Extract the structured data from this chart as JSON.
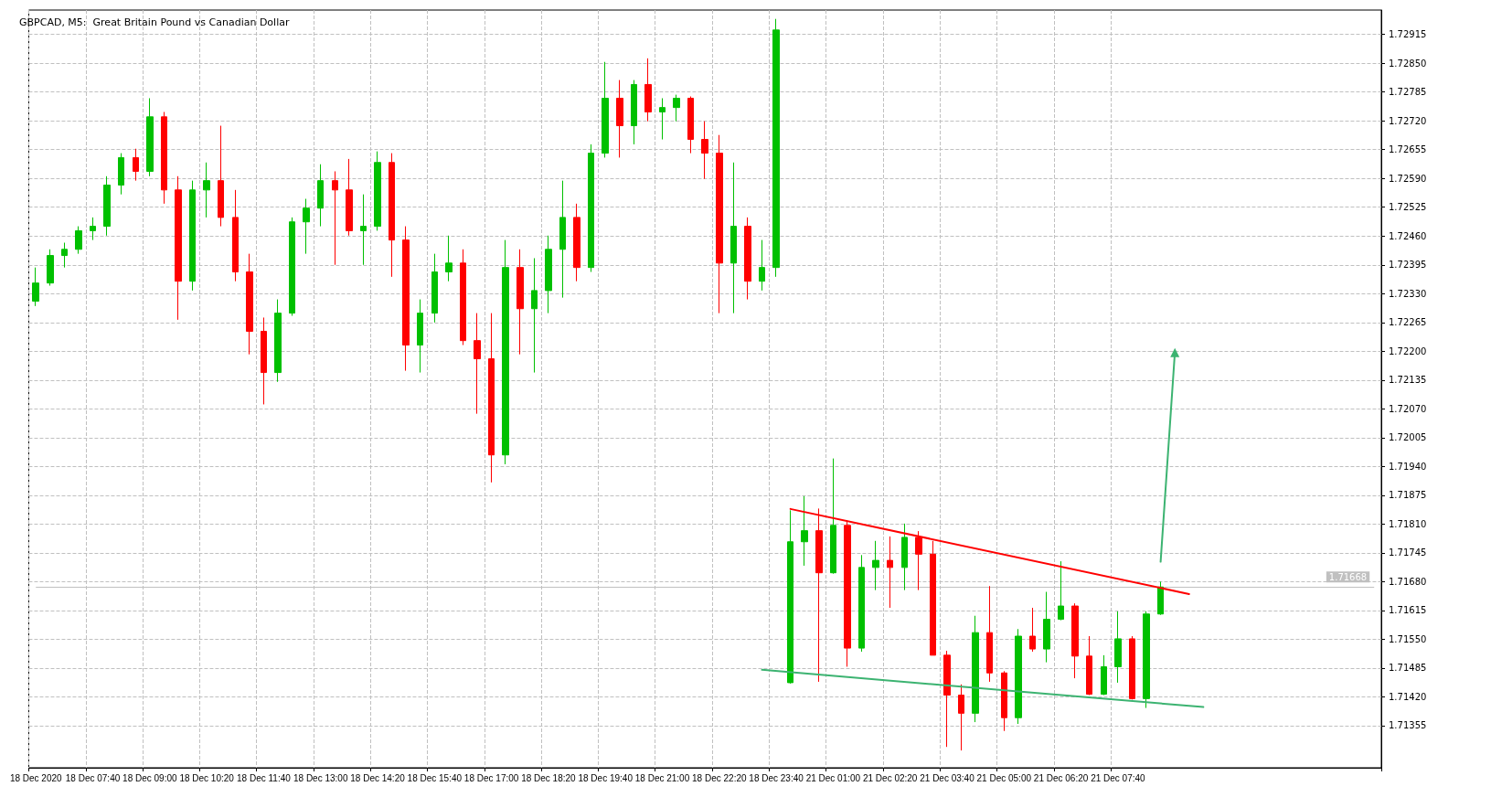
{
  "chart_data": {
    "type": "candlestick",
    "title": "GBPCAD, M5:  Great Britain Pound vs Canadian Dollar",
    "categories": [
      "18 Dec 2020",
      null,
      null,
      null,
      "18 Dec 07:40",
      null,
      null,
      null,
      "18 Dec 09:00",
      null,
      null,
      null,
      "18 Dec 10:20",
      null,
      null,
      null,
      "18 Dec 11:40",
      null,
      null,
      null,
      "18 Dec 13:00",
      null,
      null,
      null,
      "18 Dec 14:20",
      null,
      null,
      null,
      "18 Dec 15:40",
      null,
      null,
      null,
      "18 Dec 17:00",
      null,
      null,
      null,
      "18 Dec 18:20",
      null,
      null,
      null,
      "18 Dec 19:40",
      null,
      null,
      null,
      "18 Dec 21:00",
      null,
      null,
      null,
      "18 Dec 22:20",
      null,
      null,
      null,
      "18 Dec 23:40",
      null,
      null,
      null,
      "21 Dec 01:00",
      null,
      null,
      null,
      "21 Dec 02:20",
      null,
      null,
      null,
      "21 Dec 03:40",
      null,
      null,
      null,
      "21 Dec 05:00",
      null,
      null,
      null,
      "21 Dec 06:20",
      null,
      null,
      null,
      "21 Dec 07:40",
      null,
      null,
      null,
      null,
      null,
      null,
      null,
      null,
      null,
      null,
      null,
      null,
      null,
      null,
      null,
      null,
      null,
      null
    ],
    "ohlc": [
      [
        1.72313,
        1.72389,
        1.72302,
        1.72354
      ],
      [
        1.72354,
        1.7243,
        1.72348,
        1.72416
      ],
      [
        1.72416,
        1.72445,
        1.72389,
        1.7243
      ],
      [
        1.7243,
        1.72482,
        1.7242,
        1.72472
      ],
      [
        1.72472,
        1.72502,
        1.72451,
        1.72482
      ],
      [
        1.72482,
        1.72595,
        1.72461,
        1.72575
      ],
      [
        1.72575,
        1.72647,
        1.72554,
        1.72637
      ],
      [
        1.72637,
        1.72657,
        1.72585,
        1.72606
      ],
      [
        1.72606,
        1.72771,
        1.72595,
        1.72729
      ],
      [
        1.72729,
        1.7274,
        1.72533,
        1.72564
      ],
      [
        1.72564,
        1.72595,
        1.72271,
        1.72358
      ],
      [
        1.72358,
        1.72585,
        1.72337,
        1.72564
      ],
      [
        1.72564,
        1.72626,
        1.72502,
        1.72585
      ],
      [
        1.72585,
        1.72709,
        1.72482,
        1.72502
      ],
      [
        1.72502,
        1.72564,
        1.72358,
        1.72379
      ],
      [
        1.72379,
        1.7242,
        1.72193,
        1.72245
      ],
      [
        1.72245,
        1.72276,
        1.7208,
        1.72152
      ],
      [
        1.72152,
        1.72317,
        1.72131,
        1.72286
      ],
      [
        1.72286,
        1.72502,
        1.7228,
        1.72492
      ],
      [
        1.72492,
        1.72544,
        1.7242,
        1.72523
      ],
      [
        1.72523,
        1.72622,
        1.72482,
        1.72585
      ],
      [
        1.72585,
        1.72606,
        1.72395,
        1.72564
      ],
      [
        1.72564,
        1.72634,
        1.72461,
        1.72472
      ],
      [
        1.72472,
        1.72554,
        1.72395,
        1.72482
      ],
      [
        1.72482,
        1.72651,
        1.72472,
        1.72626
      ],
      [
        1.72626,
        1.72647,
        1.72368,
        1.72451
      ],
      [
        1.72451,
        1.72482,
        1.72156,
        1.72214
      ],
      [
        1.72214,
        1.72317,
        1.72152,
        1.72286
      ],
      [
        1.72286,
        1.7242,
        1.72265,
        1.72379
      ],
      [
        1.72379,
        1.72461,
        1.72358,
        1.72399
      ],
      [
        1.72399,
        1.7243,
        1.72214,
        1.72224
      ],
      [
        1.72224,
        1.72286,
        1.72059,
        1.72183
      ],
      [
        1.72183,
        1.72286,
        1.71904,
        1.71966
      ],
      [
        1.71966,
        1.72451,
        1.71945,
        1.72389
      ],
      [
        1.72389,
        1.7243,
        1.72193,
        1.72296
      ],
      [
        1.72296,
        1.7241,
        1.72152,
        1.72337
      ],
      [
        1.72337,
        1.72461,
        1.72286,
        1.7243
      ],
      [
        1.7243,
        1.72585,
        1.72321,
        1.72502
      ],
      [
        1.72502,
        1.72533,
        1.72358,
        1.72389
      ],
      [
        1.72389,
        1.72667,
        1.72379,
        1.72647
      ],
      [
        1.72647,
        1.72853,
        1.72637,
        1.72771
      ],
      [
        1.72771,
        1.72812,
        1.72637,
        1.72709
      ],
      [
        1.72709,
        1.72812,
        1.72667,
        1.72802
      ],
      [
        1.72802,
        1.72861,
        1.72719,
        1.7274
      ],
      [
        1.7274,
        1.72771,
        1.72678,
        1.7275
      ],
      [
        1.7275,
        1.72779,
        1.72719,
        1.72771
      ],
      [
        1.72771,
        1.72775,
        1.72647,
        1.72678
      ],
      [
        1.72678,
        1.72719,
        1.72589,
        1.72647
      ],
      [
        1.72647,
        1.72688,
        1.72286,
        1.72399
      ],
      [
        1.72399,
        1.72626,
        1.72286,
        1.72482
      ],
      [
        1.72482,
        1.72502,
        1.72317,
        1.72358
      ],
      [
        1.72358,
        1.72451,
        1.72337,
        1.72389
      ],
      [
        1.72389,
        1.7295,
        1.72368,
        1.72925
      ],
      [
        1.71452,
        1.71841,
        1.7145,
        1.7177
      ],
      [
        1.7177,
        1.71873,
        1.71716,
        1.71795
      ],
      [
        1.71795,
        1.71845,
        1.71454,
        1.717
      ],
      [
        1.717,
        1.71958,
        1.71698,
        1.71807
      ],
      [
        1.71807,
        1.71819,
        1.71488,
        1.7153
      ],
      [
        1.7153,
        1.7174,
        1.71522,
        1.71712
      ],
      [
        1.71712,
        1.71772,
        1.71661,
        1.71728
      ],
      [
        1.71728,
        1.71782,
        1.71621,
        1.71712
      ],
      [
        1.71712,
        1.71811,
        1.71661,
        1.7178
      ],
      [
        1.7178,
        1.71794,
        1.71661,
        1.71742
      ],
      [
        1.71742,
        1.71772,
        1.71514,
        1.71514
      ],
      [
        1.71514,
        1.71524,
        1.71307,
        1.71424
      ],
      [
        1.71424,
        1.71448,
        1.71299,
        1.71383
      ],
      [
        1.71383,
        1.71603,
        1.71363,
        1.71565
      ],
      [
        1.71565,
        1.7167,
        1.71454,
        1.71474
      ],
      [
        1.71474,
        1.71478,
        1.71343,
        1.71373
      ],
      [
        1.71373,
        1.71573,
        1.71359,
        1.71557
      ],
      [
        1.71557,
        1.71621,
        1.71522,
        1.71528
      ],
      [
        1.71528,
        1.71657,
        1.71498,
        1.71595
      ],
      [
        1.71595,
        1.71726,
        1.71593,
        1.71625
      ],
      [
        1.71625,
        1.71631,
        1.71462,
        1.71512
      ],
      [
        1.71512,
        1.71557,
        1.71424,
        1.71426
      ],
      [
        1.71426,
        1.71514,
        1.71424,
        1.71488
      ],
      [
        1.71488,
        1.71613,
        1.71452,
        1.71551
      ],
      [
        1.71551,
        1.71557,
        1.71414,
        1.71416
      ],
      [
        1.71416,
        1.71613,
        1.71395,
        1.71607
      ],
      [
        1.71607,
        1.7168,
        1.71605,
        1.71668
      ],
      null,
      null,
      null,
      null,
      null,
      null,
      null,
      null,
      null,
      null,
      null,
      null,
      null,
      null,
      null
    ],
    "ylim": [
      1.7126,
      1.7297
    ],
    "yticks": [
      1.71355,
      {
        "value": 1.7142,
        "label": "1.71420"
      },
      1.71485,
      {
        "value": 1.7155,
        "label": "1.71550"
      },
      1.71615,
      {
        "value": 1.7168,
        "label": "1.71680"
      },
      1.71745,
      {
        "value": 1.7181,
        "label": "1.71810"
      },
      1.71875,
      {
        "value": 1.7194,
        "label": "1.71940"
      },
      1.72005,
      {
        "value": 1.7207,
        "label": "1.72070"
      },
      1.72135,
      {
        "value": 1.722,
        "label": "1.72200"
      },
      1.72265,
      {
        "value": 1.7233,
        "label": "1.72330"
      },
      1.72395,
      {
        "value": 1.7246,
        "label": "1.72460"
      },
      1.72525,
      {
        "value": 1.7259,
        "label": "1.72590"
      },
      1.72655,
      {
        "value": 1.7272,
        "label": "1.72720"
      },
      1.72785,
      {
        "value": 1.7285,
        "label": "1.72850"
      },
      1.72915
    ],
    "grid": true,
    "ref_lines": [
      {
        "axis": "y",
        "value": 1.71668,
        "label": "1.71668",
        "color": "#c0c0c0"
      }
    ],
    "series": [
      {
        "type": "line",
        "color": "#ff0000",
        "values": [
          null,
          null,
          null,
          null,
          null,
          null,
          null,
          null,
          null,
          null,
          null,
          null,
          null,
          null,
          null,
          null,
          null,
          null,
          null,
          null,
          null,
          null,
          null,
          null,
          null,
          null,
          null,
          null,
          null,
          null,
          null,
          null,
          null,
          null,
          null,
          null,
          null,
          null,
          null,
          null,
          null,
          null,
          null,
          null,
          null,
          null,
          null,
          null,
          null,
          null,
          null,
          null,
          null,
          1.71844,
          null,
          null,
          null,
          null,
          null,
          null,
          null,
          null,
          null,
          null,
          null,
          null,
          null,
          null,
          null,
          null,
          null,
          null,
          null,
          null,
          null,
          null,
          null,
          null,
          null,
          null,
          null,
          1.71652,
          null,
          null,
          null,
          null,
          null,
          null,
          null,
          null,
          null,
          null,
          null,
          null,
          null
        ]
      },
      {
        "type": "line",
        "color": "#3cb371",
        "values": [
          null,
          null,
          null,
          null,
          null,
          null,
          null,
          null,
          null,
          null,
          null,
          null,
          null,
          null,
          null,
          null,
          null,
          null,
          null,
          null,
          null,
          null,
          null,
          null,
          null,
          null,
          null,
          null,
          null,
          null,
          null,
          null,
          null,
          null,
          null,
          null,
          null,
          null,
          null,
          null,
          null,
          null,
          null,
          null,
          null,
          null,
          null,
          null,
          null,
          null,
          null,
          1.71481,
          null,
          null,
          null,
          null,
          null,
          null,
          null,
          null,
          null,
          null,
          null,
          null,
          null,
          null,
          null,
          null,
          null,
          null,
          null,
          null,
          null,
          null,
          null,
          null,
          null,
          null,
          null,
          null,
          null,
          null,
          1.71397,
          null,
          null,
          null,
          null,
          null,
          null,
          null,
          null,
          null,
          null,
          null,
          null
        ]
      },
      {
        "type": "line",
        "color": "#3cb371",
        "marker": "triangle",
        "values": [
          null,
          null,
          null,
          null,
          null,
          null,
          null,
          null,
          null,
          null,
          null,
          null,
          null,
          null,
          null,
          null,
          null,
          null,
          null,
          null,
          null,
          null,
          null,
          null,
          null,
          null,
          null,
          null,
          null,
          null,
          null,
          null,
          null,
          null,
          null,
          null,
          null,
          null,
          null,
          null,
          null,
          null,
          null,
          null,
          null,
          null,
          null,
          null,
          null,
          null,
          null,
          null,
          null,
          null,
          null,
          null,
          null,
          null,
          null,
          null,
          null,
          null,
          null,
          null,
          null,
          null,
          null,
          null,
          null,
          null,
          null,
          null,
          null,
          null,
          null,
          null,
          null,
          null,
          null,
          1.71725,
          1.72197,
          null,
          null,
          null,
          null,
          null,
          null,
          null,
          null,
          null,
          null,
          null,
          null,
          null,
          null
        ]
      }
    ]
  }
}
